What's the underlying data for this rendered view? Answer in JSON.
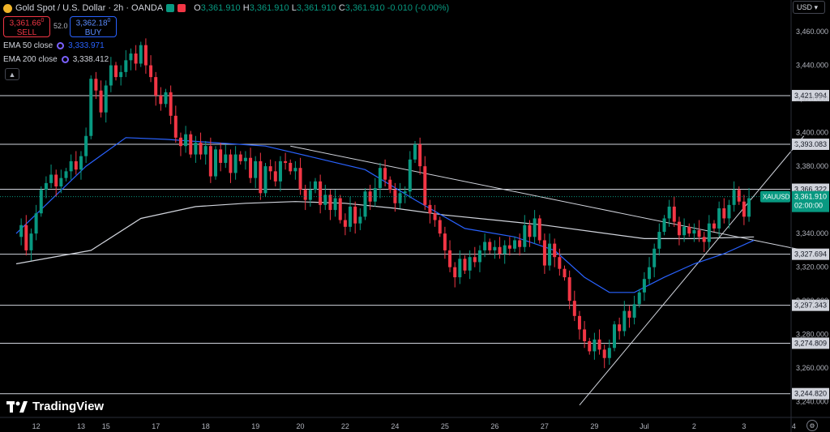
{
  "header": {
    "title": "Gold Spot / U.S. Dollar · 2h · OANDA",
    "open_label": "O",
    "open": "3,361.910",
    "high_label": "H",
    "high": "3,361.910",
    "low_label": "L",
    "low": "3,361.910",
    "close_label": "C",
    "close": "3,361.910",
    "change": "-0.010 (-0.00%)",
    "sell_price": "3,361.66",
    "sell_sup": "0",
    "sell_label": "SELL",
    "buy_price": "3,362.18",
    "buy_sup": "0",
    "buy_label": "BUY",
    "spread": "52.0"
  },
  "indicators": [
    {
      "label": "EMA 50 close",
      "value": "3,333.971",
      "color": "#2962ff"
    },
    {
      "label": "EMA 200 close",
      "value": "3,338.412",
      "color": "#d1d4dc"
    }
  ],
  "currency_button": "USD",
  "collapse_icon": "chevron-up-icon",
  "logo": "TradingView",
  "colors": {
    "up": "#089981",
    "down": "#f23645",
    "ema50": "#2962ff",
    "ema200": "#d1d4dc",
    "background": "#000000"
  },
  "chart_data": {
    "type": "candlestick",
    "symbol_tag": "XAUUSD",
    "last_price": "3,361.910",
    "countdown": "02:00:00",
    "ylim": [
      3236,
      3474
    ],
    "y_ticks": [
      "3,460.000",
      "3,440.000",
      "3,420.000",
      "3,400.000",
      "3,380.000",
      "3,360.000",
      "3,340.000",
      "3,320.000",
      "3,300.000",
      "3,280.000",
      "3,260.000",
      "3,240.000"
    ],
    "horizontal_levels": [
      {
        "value": 3421.994,
        "label": "3,421.994"
      },
      {
        "value": 3393.083,
        "label": "3,393.083"
      },
      {
        "value": 3366.322,
        "label": "3,366.322"
      },
      {
        "value": 3327.694,
        "label": "3,327.694"
      },
      {
        "value": 3297.343,
        "label": "3,297.343"
      },
      {
        "value": 3274.809,
        "label": "3,274.809"
      },
      {
        "value": 3244.82,
        "label": "3,244.820"
      }
    ],
    "x_ticks": [
      {
        "label": "12",
        "at": 4
      },
      {
        "label": "13",
        "at": 13
      },
      {
        "label": "15",
        "at": 18
      },
      {
        "label": "17",
        "at": 28
      },
      {
        "label": "18",
        "at": 38
      },
      {
        "label": "19",
        "at": 48
      },
      {
        "label": "20",
        "at": 57
      },
      {
        "label": "22",
        "at": 66
      },
      {
        "label": "24",
        "at": 76
      },
      {
        "label": "25",
        "at": 86
      },
      {
        "label": "26",
        "at": 96
      },
      {
        "label": "27",
        "at": 106
      },
      {
        "label": "29",
        "at": 116
      },
      {
        "label": "Jul",
        "at": 126
      },
      {
        "label": "2",
        "at": 136
      },
      {
        "label": "3",
        "at": 146
      },
      {
        "label": "4",
        "at": 156
      }
    ],
    "closes": [
      3338,
      3345,
      3330,
      3340,
      3352,
      3366,
      3370,
      3375,
      3368,
      3373,
      3377,
      3383,
      3378,
      3386,
      3398,
      3432,
      3425,
      3412,
      3428,
      3440,
      3433,
      3436,
      3443,
      3447,
      3441,
      3452,
      3440,
      3433,
      3422,
      3417,
      3424,
      3410,
      3397,
      3392,
      3399,
      3387,
      3394,
      3387,
      3392,
      3374,
      3390,
      3382,
      3387,
      3376,
      3387,
      3383,
      3385,
      3373,
      3383,
      3364,
      3380,
      3377,
      3371,
      3383,
      3382,
      3377,
      3379,
      3366,
      3360,
      3366,
      3371,
      3357,
      3363,
      3354,
      3361,
      3348,
      3344,
      3356,
      3346,
      3350,
      3365,
      3359,
      3367,
      3379,
      3372,
      3366,
      3358,
      3364,
      3365,
      3384,
      3393,
      3380,
      3357,
      3352,
      3348,
      3340,
      3330,
      3320,
      3314,
      3325,
      3318,
      3326,
      3323,
      3330,
      3335,
      3330,
      3332,
      3328,
      3333,
      3331,
      3336,
      3332,
      3345,
      3338,
      3349,
      3336,
      3321,
      3334,
      3326,
      3319,
      3314,
      3300,
      3291,
      3283,
      3276,
      3270,
      3277,
      3271,
      3266,
      3272,
      3286,
      3282,
      3294,
      3290,
      3298,
      3305,
      3313,
      3320,
      3331,
      3341,
      3349,
      3356,
      3347,
      3339,
      3344,
      3340,
      3342,
      3338,
      3335,
      3346,
      3343,
      3355,
      3349,
      3357,
      3366,
      3359,
      3350,
      3361
    ],
    "ema50": [
      [
        0,
        3340
      ],
      [
        14,
        3380
      ],
      [
        22,
        3397
      ],
      [
        30,
        3396
      ],
      [
        40,
        3394
      ],
      [
        50,
        3392
      ],
      [
        60,
        3385
      ],
      [
        70,
        3378
      ],
      [
        80,
        3360
      ],
      [
        90,
        3343
      ],
      [
        100,
        3338
      ],
      [
        108,
        3330
      ],
      [
        114,
        3314
      ],
      [
        119,
        3305
      ],
      [
        124,
        3305
      ],
      [
        130,
        3314
      ],
      [
        136,
        3322
      ],
      [
        142,
        3328
      ],
      [
        148,
        3336
      ]
    ],
    "ema200": [
      [
        0,
        3322
      ],
      [
        15,
        3330
      ],
      [
        25,
        3349
      ],
      [
        36,
        3356
      ],
      [
        46,
        3358
      ],
      [
        56,
        3359
      ],
      [
        66,
        3358
      ],
      [
        76,
        3355
      ],
      [
        86,
        3351
      ],
      [
        96,
        3348
      ],
      [
        106,
        3345
      ],
      [
        116,
        3341
      ],
      [
        126,
        3337
      ],
      [
        136,
        3337
      ],
      [
        148,
        3338
      ]
    ],
    "trendlines": [
      {
        "from": [
          55,
          3392
        ],
        "to": [
          158,
          3330
        ]
      },
      {
        "from": [
          113,
          3238
        ],
        "to": [
          158,
          3398
        ]
      }
    ]
  }
}
